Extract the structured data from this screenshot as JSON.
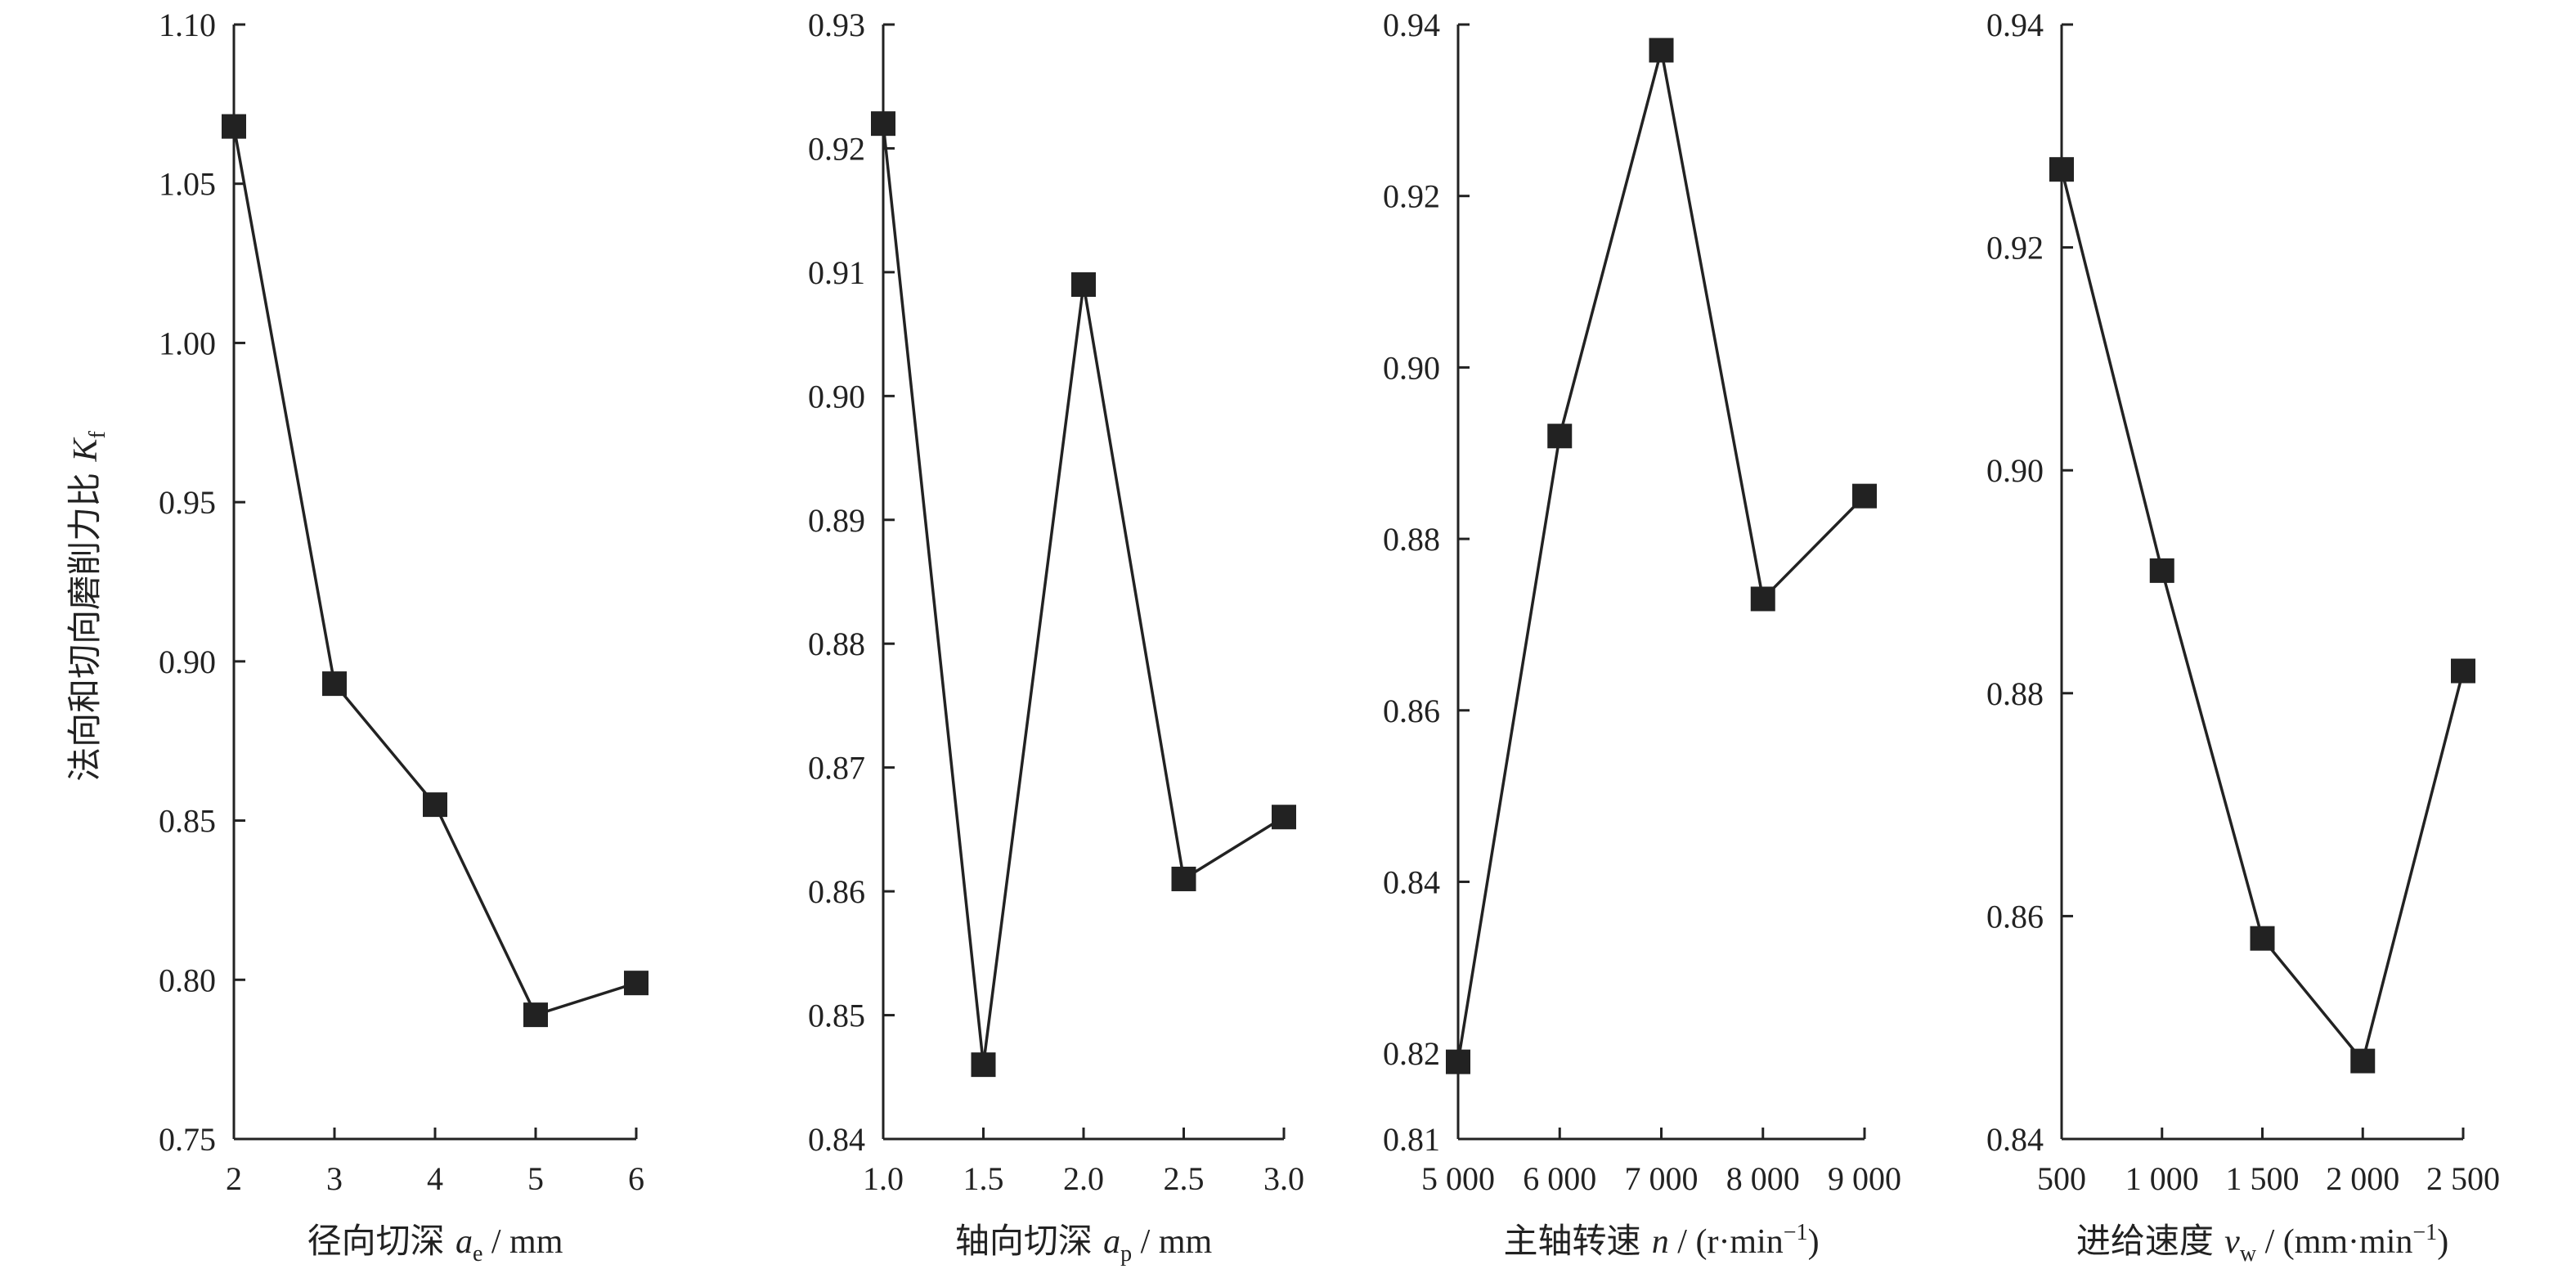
{
  "chart_data": [
    {
      "type": "line",
      "x": [
        2,
        3,
        4,
        5,
        6
      ],
      "values": [
        1.068,
        0.893,
        0.855,
        0.789,
        0.799
      ],
      "xticks": [
        "2",
        "3",
        "4",
        "5",
        "6"
      ],
      "yticks": [
        "0.75",
        "0.80",
        "0.85",
        "0.90",
        "0.95",
        "1.00",
        "1.05",
        "1.10"
      ],
      "xlim": [
        2,
        6
      ],
      "ylim": [
        0.75,
        1.1
      ],
      "xlabel": {
        "prefix": "径向切深 ",
        "var": "a",
        "sub": "e",
        "suffix": " / mm"
      },
      "ylabel": {
        "prefix": "法向和切向磨削力比 ",
        "var": "K",
        "sub": "f"
      },
      "marker": "square",
      "color": "#222222"
    },
    {
      "type": "line",
      "x": [
        1.0,
        1.5,
        2.0,
        2.5,
        3.0
      ],
      "values": [
        0.922,
        0.846,
        0.909,
        0.861,
        0.866
      ],
      "xticks": [
        "1.0",
        "1.5",
        "2.0",
        "2.5",
        "3.0"
      ],
      "yticks": [
        "0.84",
        "0.85",
        "0.86",
        "0.87",
        "0.88",
        "0.89",
        "0.90",
        "0.91",
        "0.92",
        "0.93"
      ],
      "xlim": [
        1.0,
        3.0
      ],
      "ylim": [
        0.84,
        0.93
      ],
      "xlabel": {
        "prefix": "轴向切深 ",
        "var": "a",
        "sub": "p",
        "suffix": " / mm"
      },
      "marker": "square",
      "color": "#222222"
    },
    {
      "type": "line",
      "x": [
        5000,
        6000,
        7000,
        8000,
        9000
      ],
      "values": [
        0.819,
        0.892,
        0.937,
        0.873,
        0.885
      ],
      "xticks": [
        "5 000",
        "6 000",
        "7 000",
        "8 000",
        "9 000"
      ],
      "yticks": [
        "0.81",
        "0.82",
        "0.84",
        "0.86",
        "0.88",
        "0.90",
        "0.92",
        "0.94"
      ],
      "ytick_values": [
        0.81,
        0.82,
        0.84,
        0.86,
        0.88,
        0.9,
        0.92,
        0.94
      ],
      "xlim": [
        5000,
        9000
      ],
      "ylim": [
        0.81,
        0.94
      ],
      "xlabel": {
        "prefix": "主轴转速 ",
        "var": "n",
        "suffix": " / (r·min",
        "sup": "−1",
        "end": ")"
      },
      "marker": "square",
      "color": "#222222"
    },
    {
      "type": "line",
      "x": [
        500,
        1000,
        1500,
        2000,
        2500
      ],
      "values": [
        0.927,
        0.891,
        0.858,
        0.847,
        0.882
      ],
      "xticks": [
        "500",
        "1 000",
        "1 500",
        "2 000",
        "2 500"
      ],
      "yticks": [
        "0.84",
        "0.86",
        "0.88",
        "0.90",
        "0.92",
        "0.94"
      ],
      "xlim": [
        500,
        2500
      ],
      "ylim": [
        0.84,
        0.94
      ],
      "xlabel": {
        "prefix": "进给速度 ",
        "var": "v",
        "sub": "w",
        "suffix": " / (mm·min",
        "sup": "−1",
        "end": ")"
      },
      "marker": "square",
      "color": "#222222"
    }
  ]
}
